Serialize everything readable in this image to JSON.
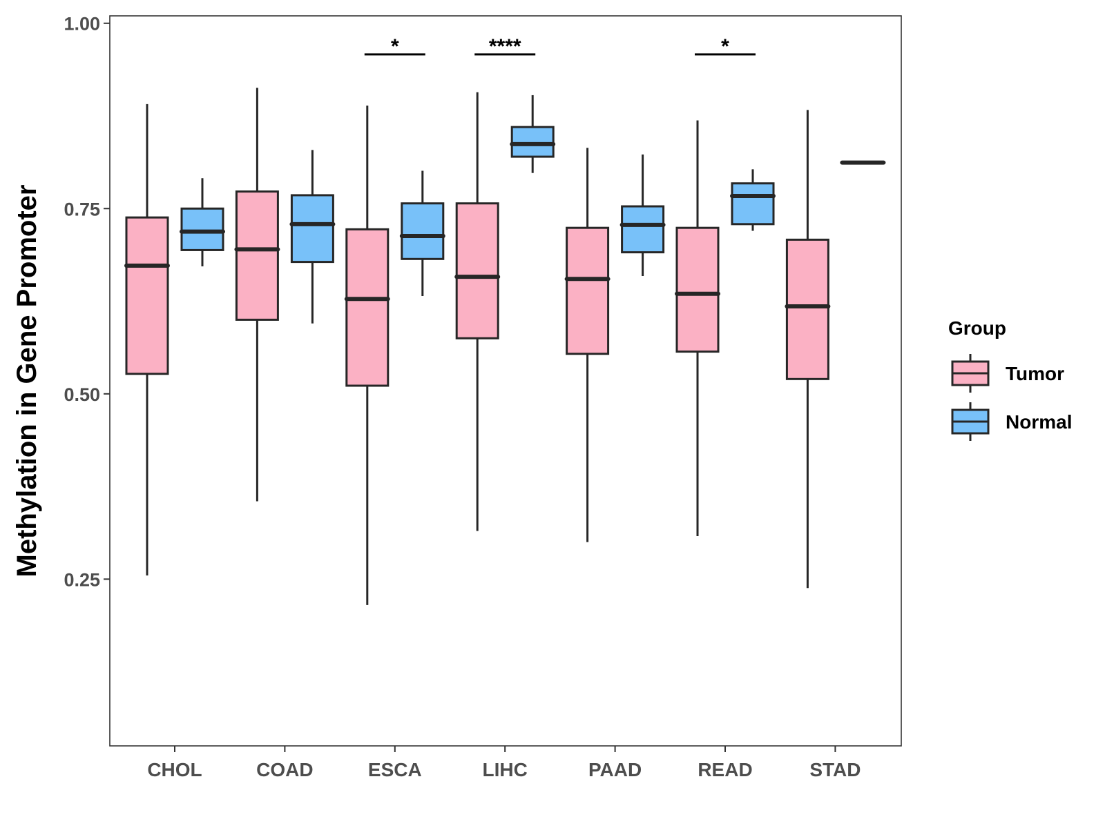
{
  "chart_data": {
    "type": "boxplot",
    "title": "",
    "xlabel": "",
    "ylabel": "Methylation in Gene Promoter",
    "ylim": [
      0.025,
      1.01
    ],
    "yticks": [
      "0.25",
      "0.50",
      "0.75",
      "1.00"
    ],
    "categories": [
      "CHOL",
      "COAD",
      "ESCA",
      "LIHC",
      "PAAD",
      "READ",
      "STAD"
    ],
    "legend": {
      "title": "Group",
      "position": "right",
      "entries": [
        {
          "name": "Tumor",
          "color": "#FBB1C4"
        },
        {
          "name": "Normal",
          "color": "#78C1F9"
        }
      ]
    },
    "series": [
      {
        "name": "Tumor",
        "color": "#FBB1C4",
        "boxes": [
          {
            "category": "CHOL",
            "min": 0.255,
            "q1": 0.527,
            "median": 0.673,
            "q3": 0.738,
            "max": 0.891
          },
          {
            "category": "COAD",
            "min": 0.355,
            "q1": 0.6,
            "median": 0.695,
            "q3": 0.773,
            "max": 0.913
          },
          {
            "category": "ESCA",
            "min": 0.215,
            "q1": 0.511,
            "median": 0.628,
            "q3": 0.722,
            "max": 0.889
          },
          {
            "category": "LIHC",
            "min": 0.315,
            "q1": 0.575,
            "median": 0.658,
            "q3": 0.757,
            "max": 0.907
          },
          {
            "category": "PAAD",
            "min": 0.3,
            "q1": 0.554,
            "median": 0.655,
            "q3": 0.724,
            "max": 0.832
          },
          {
            "category": "READ",
            "min": 0.308,
            "q1": 0.557,
            "median": 0.635,
            "q3": 0.724,
            "max": 0.869
          },
          {
            "category": "STAD",
            "min": 0.238,
            "q1": 0.52,
            "median": 0.618,
            "q3": 0.708,
            "max": 0.883
          }
        ]
      },
      {
        "name": "Normal",
        "color": "#78C1F9",
        "boxes": [
          {
            "category": "CHOL",
            "min": 0.672,
            "q1": 0.694,
            "median": 0.719,
            "q3": 0.75,
            "max": 0.791
          },
          {
            "category": "COAD",
            "min": 0.595,
            "q1": 0.678,
            "median": 0.729,
            "q3": 0.768,
            "max": 0.829
          },
          {
            "category": "ESCA",
            "min": 0.632,
            "q1": 0.682,
            "median": 0.713,
            "q3": 0.757,
            "max": 0.801
          },
          {
            "category": "LIHC",
            "min": 0.798,
            "q1": 0.82,
            "median": 0.837,
            "q3": 0.86,
            "max": 0.903
          },
          {
            "category": "PAAD",
            "min": 0.659,
            "q1": 0.691,
            "median": 0.728,
            "q3": 0.753,
            "max": 0.823
          },
          {
            "category": "READ",
            "min": 0.72,
            "q1": 0.729,
            "median": 0.767,
            "q3": 0.784,
            "max": 0.803
          },
          {
            "category": "STAD",
            "min": 0.812,
            "q1": 0.812,
            "median": 0.812,
            "q3": 0.812,
            "max": 0.812
          }
        ]
      }
    ],
    "significance": [
      {
        "category": "ESCA",
        "label": "*",
        "y": 0.958
      },
      {
        "category": "LIHC",
        "label": "****",
        "y": 0.958
      },
      {
        "category": "READ",
        "label": "*",
        "y": 0.958
      }
    ]
  }
}
